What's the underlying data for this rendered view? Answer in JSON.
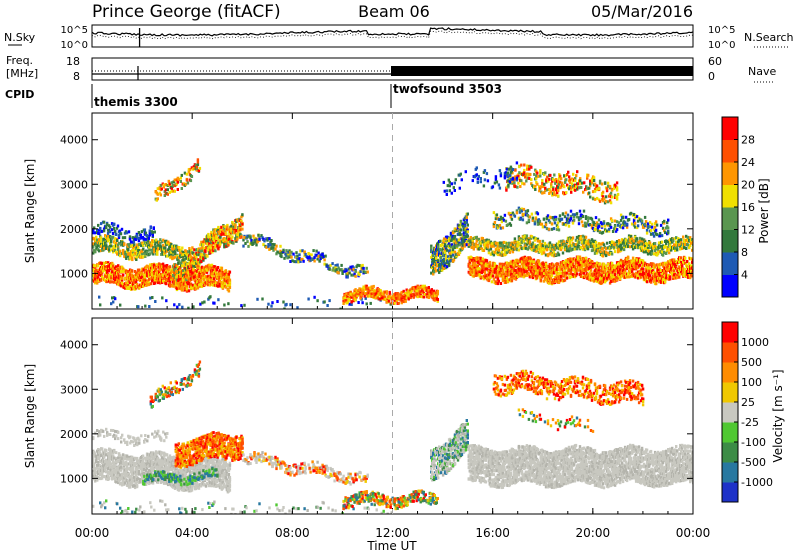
{
  "header": {
    "station": "Prince George (fitACF)",
    "beam": "Beam 06",
    "date": "05/Mar/2016"
  },
  "noise_panel": {
    "left_label": "N.Sky",
    "left_ticks": [
      "10^5",
      "10^0"
    ],
    "right_ticks": [
      "10^5",
      "10^0"
    ],
    "right_label": "N.Search"
  },
  "freq_panel": {
    "left_label_line1": "Freq.",
    "left_label_line2": "[MHz]",
    "left_ticks": [
      "18",
      "8"
    ],
    "right_ticks": [
      "60",
      "0"
    ],
    "right_label": "Nave"
  },
  "cpid": {
    "label": "CPID",
    "modes": [
      {
        "name": "themis 3300",
        "start_hour": 0
      },
      {
        "name": "twofsound 3503",
        "start_hour": 12
      }
    ]
  },
  "chart_data": [
    {
      "type": "heatmap",
      "parameter": "Power",
      "ylabel": "Slant Range [km]",
      "yticks": [
        1000,
        2000,
        3000,
        4000
      ],
      "ylim": [
        200,
        4600
      ],
      "colorbar_label": "Power [dB]",
      "colorbar_ticks": [
        "28",
        "24",
        "20",
        "16",
        "12",
        "8",
        "4"
      ],
      "colors": [
        "#0000ff",
        "#1e5ab4",
        "#32783c",
        "#5a9650",
        "#f0e000",
        "#ff9600",
        "#ff5000",
        "#ff0000"
      ]
    },
    {
      "type": "heatmap",
      "parameter": "Velocity",
      "ylabel": "Slant Range [km]",
      "yticks": [
        1000,
        2000,
        3000,
        4000
      ],
      "ylim": [
        200,
        4600
      ],
      "colorbar_label": "Velocity [m s⁻¹]",
      "colorbar_ticks": [
        "1000",
        "500",
        "100",
        "25",
        "-25",
        "-100",
        "-500",
        "-1000"
      ],
      "colors": [
        "#1e32c8",
        "#2878a0",
        "#3c8c46",
        "#50c832",
        "#c8c8c0",
        "#f0c800",
        "#ff8c00",
        "#ff5000",
        "#ff0000"
      ]
    }
  ],
  "time_axis": {
    "xlabel": "Time UT",
    "ticks": [
      "00:00",
      "04:00",
      "08:00",
      "12:00",
      "16:00",
      "20:00",
      "00:00"
    ],
    "xlim_hours": [
      0,
      24
    ]
  }
}
